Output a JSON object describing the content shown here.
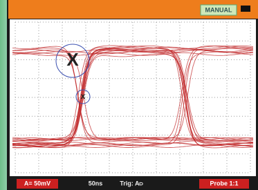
{
  "header": {
    "mode": "MANUAL"
  },
  "cursor": {
    "large_label": "X",
    "small_label": "x"
  },
  "footer": {
    "channel_scale": "A= 50mV",
    "timebase": "50ns",
    "trigger": "Trig: A⫐",
    "probe": "Probe 1:1"
  }
}
